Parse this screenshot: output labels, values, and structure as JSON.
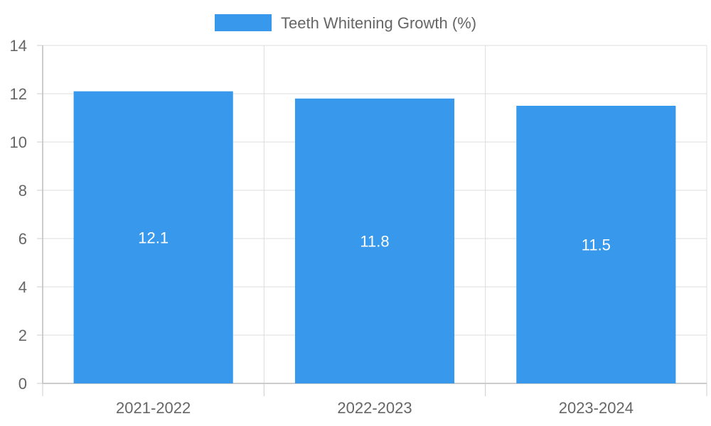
{
  "chart_data": {
    "type": "bar",
    "categories": [
      "2021-2022",
      "2022-2023",
      "2023-2024"
    ],
    "series": [
      {
        "name": "Teeth Whitening Growth (%)",
        "values": [
          12.1,
          11.8,
          11.5
        ],
        "color": "#3899ec"
      }
    ],
    "data_labels": [
      "12.1",
      "11.8",
      "11.5"
    ],
    "ylim": [
      0,
      14
    ],
    "yticks": [
      "0",
      "2",
      "4",
      "6",
      "8",
      "10",
      "12",
      "14"
    ],
    "grid": true,
    "legend_position": "top-center"
  }
}
